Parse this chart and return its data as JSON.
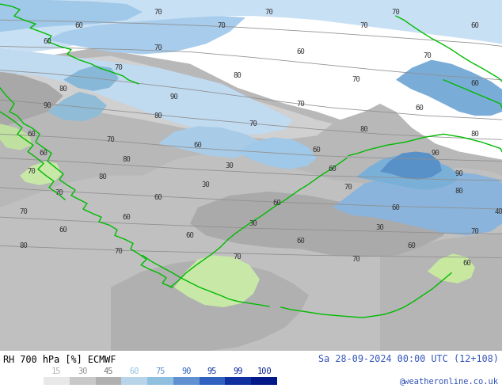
{
  "title_left": "RH 700 hPa [%] ECMWF",
  "title_right": "Sa 28-09-2024 00:00 UTC (12+108)",
  "credit": "@weatheronline.co.uk",
  "legend_values": [
    15,
    30,
    45,
    60,
    75,
    90,
    95,
    99,
    100
  ],
  "legend_colors": [
    "#e8e8e8",
    "#c8c8c8",
    "#b0b0b0",
    "#b8d4e8",
    "#90c0e0",
    "#6090d0",
    "#3060c0",
    "#1030a0",
    "#001888"
  ],
  "legend_text_colors": [
    "#b0b0b0",
    "#909090",
    "#707070",
    "#90c0e0",
    "#6090d0",
    "#3060c0",
    "#1030a0",
    "#0820a0",
    "#001888"
  ],
  "figure_bg": "#ffffff",
  "map_bg": "#c8dff0"
}
